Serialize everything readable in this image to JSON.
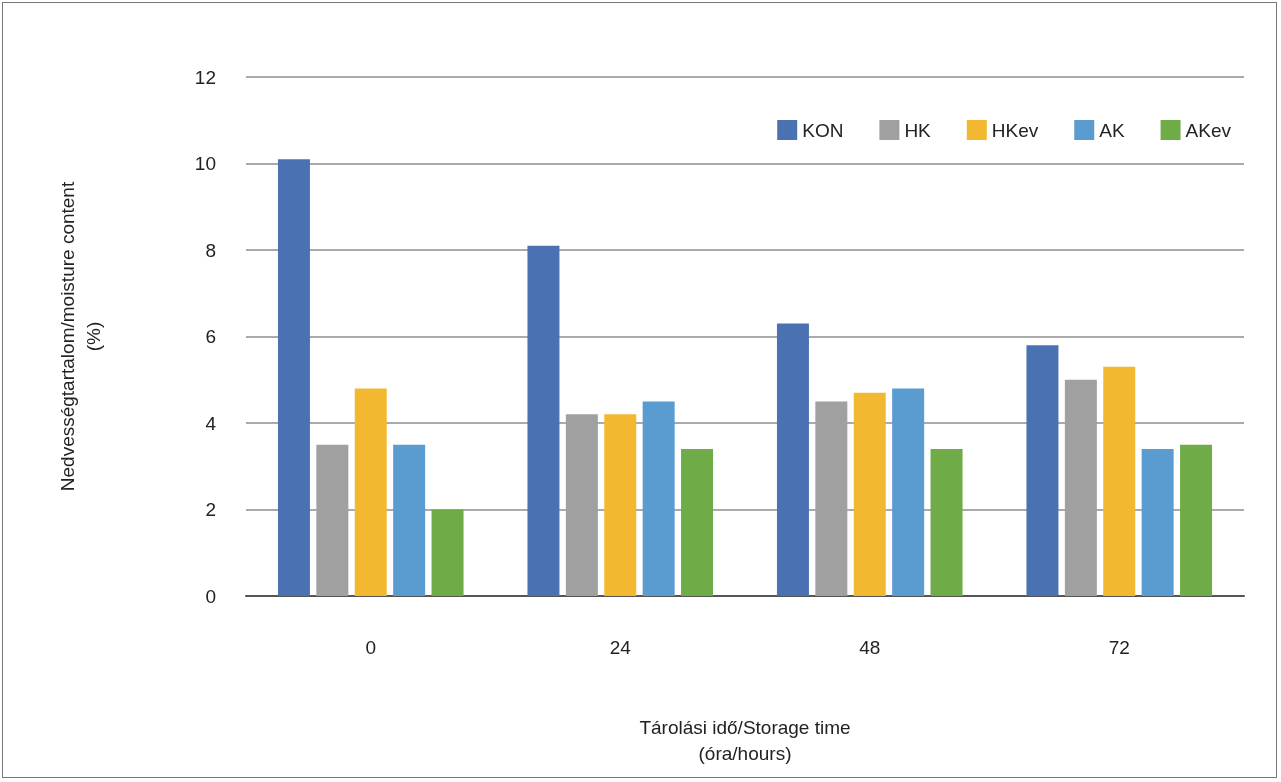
{
  "chart_data": {
    "type": "bar",
    "ylabel": "Nedvességtartalom/moisture content\n(%)",
    "xlabel": "Tárolási idő/Storage time\n(óra/hours)",
    "categories": [
      "0",
      "24",
      "48",
      "72"
    ],
    "series": [
      {
        "name": "KON",
        "color": "#4a72b3",
        "values": [
          10.1,
          8.1,
          6.3,
          5.8
        ]
      },
      {
        "name": "HK",
        "color": "#a0a0a0",
        "values": [
          3.5,
          4.2,
          4.5,
          5.0
        ]
      },
      {
        "name": "HKev",
        "color": "#f2b930",
        "values": [
          4.8,
          4.2,
          4.7,
          5.3
        ]
      },
      {
        "name": "AK",
        "color": "#5a9bd0",
        "values": [
          3.5,
          4.5,
          4.8,
          3.4
        ]
      },
      {
        "name": "AKev",
        "color": "#6fac47",
        "values": [
          2.0,
          3.4,
          3.4,
          3.5
        ]
      }
    ],
    "ylim": [
      0,
      12
    ],
    "yticks": [
      0,
      2,
      4,
      6,
      8,
      10,
      12
    ],
    "grid": "y",
    "legend": "top right"
  }
}
